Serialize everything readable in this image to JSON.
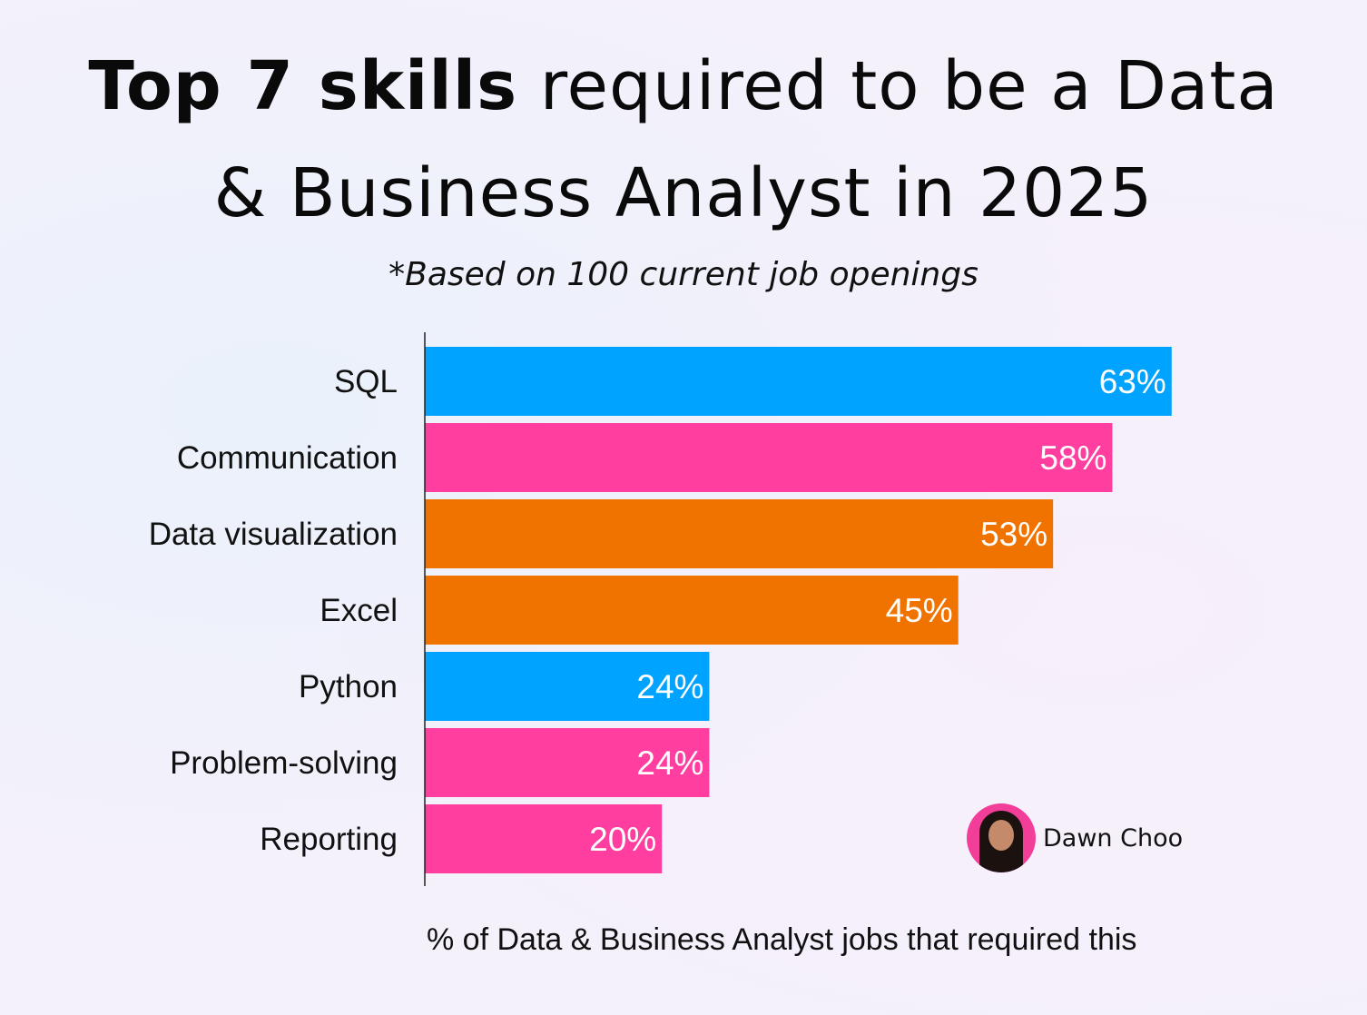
{
  "title": {
    "bold": "Top 7 skills",
    "rest_line1": " required to be a Data",
    "line2": "& Business Analyst in 2025"
  },
  "subtitle": "*Based on 100 current job openings",
  "author": {
    "name": "Dawn Choo",
    "avatar_icon": "author-photo"
  },
  "colors": {
    "blue": "#00A3FF",
    "pink": "#FF3E9F",
    "orange": "#F07300"
  },
  "chart_data": {
    "type": "bar",
    "orientation": "horizontal",
    "title": "Top 7 skills required to be a Data & Business Analyst in 2025",
    "subtitle": "*Based on 100 current job openings",
    "xlabel": "% of Data & Business Analyst jobs that required this",
    "ylabel": "",
    "categories": [
      "SQL",
      "Communication",
      "Data visualization",
      "Excel",
      "Python",
      "Problem-solving",
      "Reporting"
    ],
    "values": [
      63,
      58,
      53,
      45,
      24,
      24,
      20
    ],
    "data_labels": [
      "63%",
      "58%",
      "53%",
      "45%",
      "24%",
      "24%",
      "20%"
    ],
    "bar_colors": [
      "#00A3FF",
      "#FF3E9F",
      "#F07300",
      "#F07300",
      "#00A3FF",
      "#FF3E9F",
      "#FF3E9F"
    ],
    "xlim": [
      0,
      100
    ],
    "grid": false,
    "legend": "none"
  }
}
